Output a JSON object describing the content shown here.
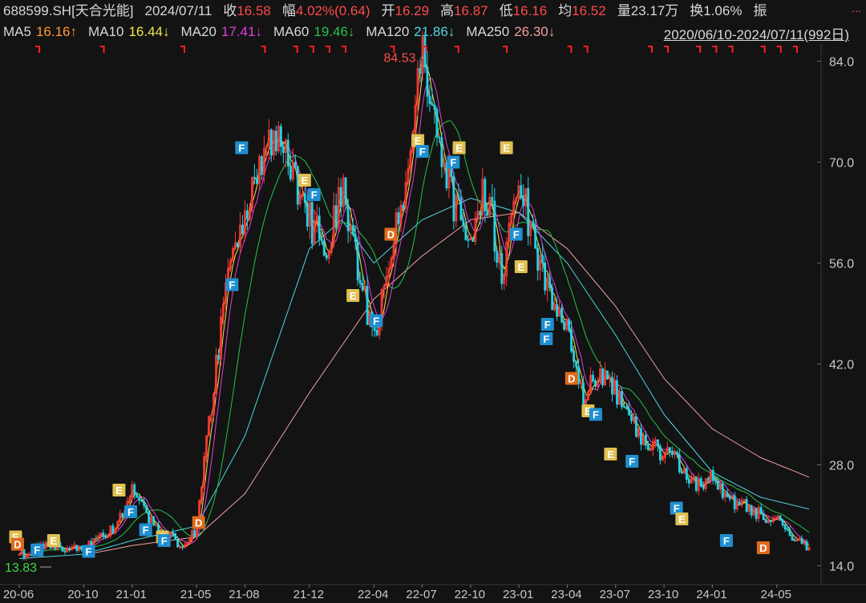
{
  "header": {
    "symbol": "688599.SH[天合光能]",
    "date": "2024/07/11",
    "close_label": "收",
    "close": "16.58",
    "change_label": "幅",
    "change": "4.02%(0.64)",
    "open_label": "开",
    "open": "16.29",
    "high_label": "高",
    "high": "16.87",
    "low_label": "低",
    "low": "16.16",
    "avg_label": "均",
    "avg": "16.52",
    "volume_label": "量",
    "volume": "23.17万",
    "turnover_label": "换",
    "turnover": "1.06%",
    "amplitude_label": "振",
    "more": "..."
  },
  "ma_legend": [
    {
      "name": "MA5",
      "value": "16.16↑",
      "color": "#ff9a2e"
    },
    {
      "name": "MA10",
      "value": "16.44↓",
      "color": "#f2e84a"
    },
    {
      "name": "MA20",
      "value": "17.41↓",
      "color": "#e23ce2"
    },
    {
      "name": "MA60",
      "value": "19.46↓",
      "color": "#27c24c"
    },
    {
      "name": "MA120",
      "value": "21.86↓",
      "color": "#4fd6e0"
    },
    {
      "name": "MA250",
      "value": "26.30↓",
      "color": "#f0a0a0"
    }
  ],
  "range_label": "2020/06/10-2024/07/11(992日)",
  "colors": {
    "up": "#ff3838",
    "down": "#22d3e8",
    "background": "#131313",
    "badge_E": "#e0c050",
    "badge_F": "#1f8fd1",
    "badge_D": "#e06a1e"
  },
  "chart_data": {
    "type": "candlestick",
    "yticks": [
      "84.0",
      "70.0",
      "56.0",
      "42.0",
      "28.0",
      "14.0"
    ],
    "ylim": [
      12.5,
      86
    ],
    "xticks": [
      "20-06",
      "20-10",
      "21-01",
      "21-05",
      "21-08",
      "21-12",
      "22-04",
      "22-07",
      "22-10",
      "23-01",
      "23-04",
      "23-07",
      "23-10",
      "24-01",
      "24-05"
    ],
    "annotations": {
      "high": "84.53",
      "low": "13.83"
    },
    "price_path": [
      [
        "20-06",
        15.5
      ],
      [
        "20-08",
        16.8
      ],
      [
        "20-10",
        16.2
      ],
      [
        "20-12",
        19.5
      ],
      [
        "21-01",
        24.5
      ],
      [
        "21-02",
        20.5
      ],
      [
        "21-03",
        18.5
      ],
      [
        "21-04",
        17.0
      ],
      [
        "21-05",
        19.0
      ],
      [
        "21-06",
        38.0
      ],
      [
        "21-07",
        55.0
      ],
      [
        "21-08",
        62.0
      ],
      [
        "21-09",
        70.0
      ],
      [
        "21-10",
        74.0
      ],
      [
        "21-11",
        68.0
      ],
      [
        "21-12",
        62.0
      ],
      [
        "22-01",
        58.0
      ],
      [
        "22-02",
        66.0
      ],
      [
        "22-03",
        56.0
      ],
      [
        "22-04",
        45.0
      ],
      [
        "22-05",
        58.0
      ],
      [
        "22-06",
        68.0
      ],
      [
        "22-07",
        84.53
      ],
      [
        "22-08",
        74.0
      ],
      [
        "22-09",
        64.0
      ],
      [
        "22-10",
        61.0
      ],
      [
        "22-11",
        66.0
      ],
      [
        "22-12",
        54.0
      ],
      [
        "23-01",
        68.0
      ],
      [
        "23-02",
        58.0
      ],
      [
        "23-03",
        50.0
      ],
      [
        "23-04",
        46.0
      ],
      [
        "23-05",
        37.0
      ],
      [
        "23-06",
        41.0
      ],
      [
        "23-07",
        38.0
      ],
      [
        "23-08",
        34.0
      ],
      [
        "23-09",
        31.0
      ],
      [
        "23-10",
        29.5
      ],
      [
        "23-11",
        28.0
      ],
      [
        "23-12",
        25.0
      ],
      [
        "24-01",
        26.5
      ],
      [
        "24-02",
        23.0
      ],
      [
        "24-03",
        22.5
      ],
      [
        "24-04",
        21.0
      ],
      [
        "24-05",
        20.5
      ],
      [
        "24-06",
        18.0
      ],
      [
        "24-07",
        16.58
      ]
    ],
    "ma_series": {
      "MA120": [
        [
          "20-06",
          15.0
        ],
        [
          "20-10",
          15.6
        ],
        [
          "21-01",
          17.5
        ],
        [
          "21-05",
          19.5
        ],
        [
          "21-08",
          32.0
        ],
        [
          "21-12",
          58.0
        ],
        [
          "22-02",
          62.0
        ],
        [
          "22-04",
          56.0
        ],
        [
          "22-07",
          62.0
        ],
        [
          "22-10",
          65.0
        ],
        [
          "23-01",
          63.0
        ],
        [
          "23-04",
          56.0
        ],
        [
          "23-07",
          46.0
        ],
        [
          "23-10",
          35.0
        ],
        [
          "24-01",
          27.0
        ],
        [
          "24-04",
          23.5
        ],
        [
          "24-07",
          21.86
        ]
      ],
      "MA250": [
        [
          "20-10",
          15.5
        ],
        [
          "21-01",
          16.8
        ],
        [
          "21-05",
          18.0
        ],
        [
          "21-08",
          24.0
        ],
        [
          "21-12",
          38.0
        ],
        [
          "22-04",
          51.0
        ],
        [
          "22-07",
          57.0
        ],
        [
          "22-10",
          62.0
        ],
        [
          "23-01",
          63.0
        ],
        [
          "23-04",
          58.0
        ],
        [
          "23-07",
          50.0
        ],
        [
          "23-10",
          40.0
        ],
        [
          "24-01",
          33.0
        ],
        [
          "24-04",
          29.0
        ],
        [
          "24-07",
          26.3
        ]
      ]
    },
    "signal_badges": [
      {
        "d": "20-06",
        "p": 18.0,
        "t": "E"
      },
      {
        "d": "20-06",
        "p": 17.0,
        "t": "D"
      },
      {
        "d": "20-07",
        "p": 16.2,
        "t": "F"
      },
      {
        "d": "20-08",
        "p": 17.5,
        "t": "E"
      },
      {
        "d": "20-10",
        "p": 16.0,
        "t": "F"
      },
      {
        "d": "20-12",
        "p": 24.5,
        "t": "E"
      },
      {
        "d": "21-01",
        "p": 21.5,
        "t": "F"
      },
      {
        "d": "21-02",
        "p": 19.0,
        "t": "F"
      },
      {
        "d": "21-03",
        "p": 18.0,
        "t": "E"
      },
      {
        "d": "21-03",
        "p": 17.5,
        "t": "F"
      },
      {
        "d": "21-05",
        "p": 20.0,
        "t": "D"
      },
      {
        "d": "21-07",
        "p": 53.0,
        "t": "F"
      },
      {
        "d": "21-08",
        "p": 72.0,
        "t": "F"
      },
      {
        "d": "21-12",
        "p": 67.5,
        "t": "E"
      },
      {
        "d": "21-12",
        "p": 65.5,
        "t": "F"
      },
      {
        "d": "22-03",
        "p": 51.5,
        "t": "E"
      },
      {
        "d": "22-04",
        "p": 48.0,
        "t": "F"
      },
      {
        "d": "22-05",
        "p": 60.0,
        "t": "D"
      },
      {
        "d": "22-07",
        "p": 73.0,
        "t": "E"
      },
      {
        "d": "22-07",
        "p": 71.5,
        "t": "F"
      },
      {
        "d": "22-09",
        "p": 72.0,
        "t": "E"
      },
      {
        "d": "22-09",
        "p": 70.0,
        "t": "F"
      },
      {
        "d": "22-12",
        "p": 72.0,
        "t": "E"
      },
      {
        "d": "23-01",
        "p": 60.0,
        "t": "F"
      },
      {
        "d": "23-01",
        "p": 55.5,
        "t": "E"
      },
      {
        "d": "23-03",
        "p": 47.5,
        "t": "F"
      },
      {
        "d": "23-03",
        "p": 45.5,
        "t": "F"
      },
      {
        "d": "23-04",
        "p": 40.0,
        "t": "D"
      },
      {
        "d": "23-05",
        "p": 35.5,
        "t": "E"
      },
      {
        "d": "23-06",
        "p": 35.0,
        "t": "F"
      },
      {
        "d": "23-07",
        "p": 29.5,
        "t": "E"
      },
      {
        "d": "23-08",
        "p": 28.5,
        "t": "F"
      },
      {
        "d": "23-11",
        "p": 22.0,
        "t": "F"
      },
      {
        "d": "23-11",
        "p": 20.5,
        "t": "E"
      },
      {
        "d": "24-02",
        "p": 17.5,
        "t": "F"
      },
      {
        "d": "24-04",
        "p": 16.5,
        "t": "D"
      }
    ],
    "top_flags": [
      "20-07",
      "20-11",
      "21-04",
      "21-09",
      "21-11",
      "21-12",
      "22-01",
      "22-02",
      "22-05",
      "22-07",
      "22-09",
      "22-12",
      "23-04",
      "23-05",
      "23-09",
      "23-10",
      "23-12",
      "24-01",
      "24-02",
      "24-04",
      "24-05",
      "24-06"
    ]
  }
}
